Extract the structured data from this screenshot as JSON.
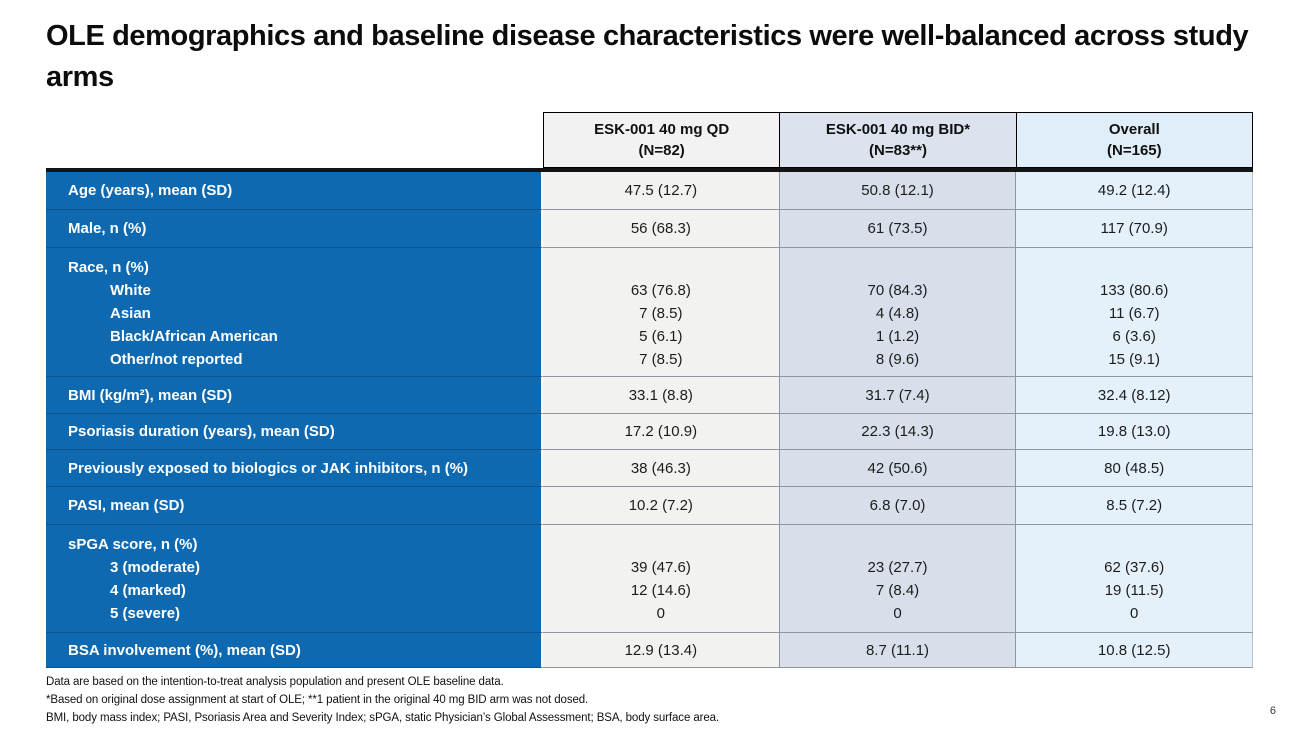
{
  "slide": {
    "title": "OLE demographics and baseline disease characteristics were well-balanced across study arms",
    "page_number": "6"
  },
  "table": {
    "columns": [
      {
        "name": "ESK-001 40 mg QD",
        "n": "(N=82)"
      },
      {
        "name": "ESK-001 40 mg BID*",
        "n": "(N=83**)"
      },
      {
        "name": "Overall",
        "n": "(N=165)"
      }
    ],
    "rows": [
      {
        "label": "Age (years), mean (SD)",
        "values": [
          "47.5 (12.7)",
          "50.8 (12.1)",
          "49.2 (12.4)"
        ]
      },
      {
        "label": "Male, n (%)",
        "values": [
          "56 (68.3)",
          "61 (73.5)",
          "117 (70.9)"
        ]
      },
      {
        "label": "Race, n (%)",
        "sublabels": [
          "White",
          "Asian",
          "Black/African American",
          "Other/not reported"
        ],
        "subvalues": [
          [
            "63 (76.8)",
            "7 (8.5)",
            "5 (6.1)",
            "7 (8.5)"
          ],
          [
            "70 (84.3)",
            "4 (4.8)",
            "1 (1.2)",
            "8 (9.6)"
          ],
          [
            "133 (80.6)",
            "11 (6.7)",
            "6 (3.6)",
            "15 (9.1)"
          ]
        ]
      },
      {
        "label": "BMI (kg/m²), mean (SD)",
        "values": [
          "33.1 (8.8)",
          "31.7 (7.4)",
          "32.4 (8.12)"
        ]
      },
      {
        "label": "Psoriasis duration (years), mean (SD)",
        "values": [
          "17.2 (10.9)",
          "22.3 (14.3)",
          "19.8 (13.0)"
        ]
      },
      {
        "label": "Previously exposed to biologics or JAK inhibitors, n (%)",
        "values": [
          "38 (46.3)",
          "42 (50.6)",
          "80 (48.5)"
        ]
      },
      {
        "label": "PASI, mean (SD)",
        "values": [
          "10.2 (7.2)",
          "6.8 (7.0)",
          "8.5 (7.2)"
        ]
      },
      {
        "label": "sPGA score, n (%)",
        "sublabels": [
          "3 (moderate)",
          "4 (marked)",
          "5 (severe)"
        ],
        "subvalues": [
          [
            "39 (47.6)",
            "12 (14.6)",
            "0"
          ],
          [
            "23 (27.7)",
            "7 (8.4)",
            "0"
          ],
          [
            "62 (37.6)",
            "19 (11.5)",
            "0"
          ]
        ]
      },
      {
        "label": "BSA involvement (%), mean (SD)",
        "values": [
          "12.9 (13.4)",
          "8.7 (11.1)",
          "10.8 (12.5)"
        ]
      }
    ]
  },
  "footnotes": [
    "Data are based on the intention-to-treat analysis population and present OLE baseline data.",
    "*Based on original dose assignment at start of OLE; **1 patient in the original 40 mg BID arm was not dosed.",
    "BMI, body mass index; PASI, Psoriasis Area and Severity Index; sPGA, static Physician’s Global Assessment; BSA, body surface area."
  ],
  "colors": {
    "label_blue": "#0e69b1",
    "col_qd_bg": "#f2f2f0",
    "col_bid_bg": "#d9dfea",
    "col_overall_bg": "#e4f1fb",
    "header_qd_bg": "#f2f2f2",
    "header_bid_bg": "#dce3ee",
    "header_overall_bg": "#e0eef9"
  }
}
